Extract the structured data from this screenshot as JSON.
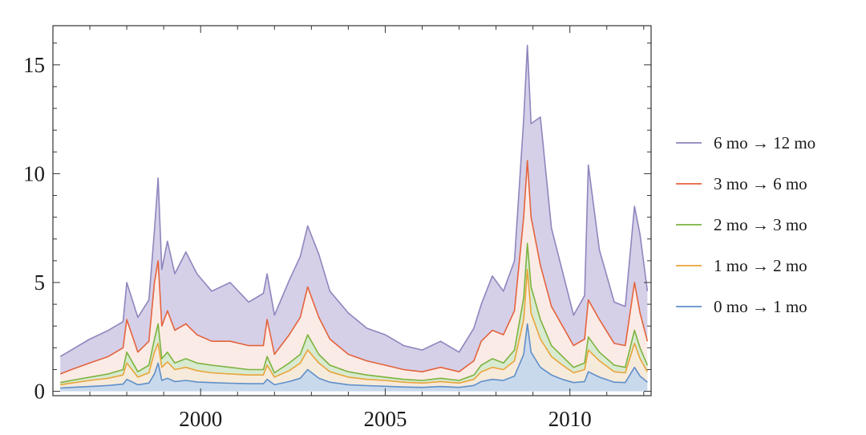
{
  "chart_data": {
    "type": "area",
    "x_ticks": [
      {
        "label": "2000",
        "value": 2000
      },
      {
        "label": "2005",
        "value": 2005
      },
      {
        "label": "2010",
        "value": 2010
      }
    ],
    "y_ticks": [
      {
        "label": "0",
        "value": 0
      },
      {
        "label": "5",
        "value": 5
      },
      {
        "label": "10",
        "value": 10
      },
      {
        "label": "15",
        "value": 15
      }
    ],
    "xlim": [
      1996.0,
      2012.2
    ],
    "ylim": [
      -0.2,
      16.8
    ],
    "x": [
      1996.2,
      1996.5,
      1997.0,
      1997.5,
      1997.9,
      1998.0,
      1998.3,
      1998.6,
      1998.75,
      1998.85,
      1998.95,
      1999.1,
      1999.3,
      1999.6,
      1999.9,
      2000.3,
      2000.8,
      2001.3,
      2001.7,
      2001.8,
      2002.0,
      2002.4,
      2002.7,
      2002.9,
      2003.2,
      2003.5,
      2004.0,
      2004.5,
      2005.0,
      2005.5,
      2006.0,
      2006.5,
      2007.0,
      2007.4,
      2007.6,
      2007.9,
      2008.2,
      2008.5,
      2008.75,
      2008.85,
      2008.95,
      2009.2,
      2009.5,
      2009.8,
      2010.1,
      2010.4,
      2010.5,
      2010.8,
      2011.2,
      2011.5,
      2011.75,
      2011.9,
      2012.1
    ],
    "series": [
      {
        "name": "6 mo → 12 mo",
        "color": "#8f85bd",
        "fill": "#d5d0e8",
        "values": [
          1.6,
          1.9,
          2.4,
          2.8,
          3.2,
          5.0,
          3.4,
          4.2,
          7.4,
          9.8,
          5.6,
          6.9,
          5.4,
          6.4,
          5.4,
          4.6,
          5.0,
          4.1,
          4.5,
          5.4,
          3.5,
          5.1,
          6.2,
          7.6,
          6.3,
          4.6,
          3.6,
          2.9,
          2.6,
          2.1,
          1.9,
          2.3,
          1.8,
          2.9,
          4.0,
          5.3,
          4.6,
          6.0,
          12.5,
          15.9,
          12.3,
          12.6,
          7.5,
          5.5,
          3.5,
          4.4,
          10.4,
          6.5,
          4.1,
          3.9,
          8.5,
          7.2,
          4.6
        ]
      },
      {
        "name": "3 mo → 6 mo",
        "color": "#e4633d",
        "fill": "#fbebe6",
        "values": [
          0.8,
          1.0,
          1.3,
          1.6,
          2.0,
          3.3,
          1.8,
          2.3,
          5.0,
          6.0,
          3.0,
          3.7,
          2.8,
          3.1,
          2.6,
          2.3,
          2.3,
          2.1,
          2.1,
          3.3,
          1.7,
          2.6,
          3.4,
          4.8,
          3.4,
          2.4,
          1.7,
          1.4,
          1.2,
          1.0,
          0.9,
          1.1,
          0.9,
          1.4,
          2.3,
          2.8,
          2.6,
          3.7,
          8.0,
          10.6,
          8.0,
          5.8,
          3.9,
          3.0,
          2.1,
          2.4,
          4.2,
          3.3,
          2.2,
          2.1,
          5.0,
          3.6,
          2.3
        ]
      },
      {
        "name": "2 mo → 3 mo",
        "color": "#7cb33f",
        "fill": "#d8ead0",
        "values": [
          0.4,
          0.5,
          0.65,
          0.8,
          1.0,
          1.8,
          0.9,
          1.2,
          2.4,
          3.1,
          1.5,
          1.8,
          1.3,
          1.5,
          1.3,
          1.2,
          1.1,
          1.0,
          1.0,
          1.6,
          0.85,
          1.3,
          1.7,
          2.6,
          1.7,
          1.2,
          0.9,
          0.75,
          0.65,
          0.55,
          0.5,
          0.6,
          0.5,
          0.75,
          1.2,
          1.5,
          1.3,
          1.9,
          4.3,
          6.8,
          4.8,
          3.3,
          2.1,
          1.6,
          1.1,
          1.3,
          2.5,
          1.8,
          1.2,
          1.1,
          2.8,
          2.0,
          1.2
        ]
      },
      {
        "name": "1 mo → 2 mo",
        "color": "#e9a43a",
        "fill": "#f6eadb",
        "values": [
          0.3,
          0.38,
          0.5,
          0.6,
          0.75,
          1.3,
          0.65,
          0.85,
          1.8,
          2.2,
          1.1,
          1.35,
          1.0,
          1.1,
          0.95,
          0.85,
          0.8,
          0.75,
          0.75,
          1.2,
          0.65,
          0.95,
          1.3,
          1.9,
          1.3,
          0.9,
          0.65,
          0.55,
          0.5,
          0.42,
          0.38,
          0.45,
          0.38,
          0.55,
          0.9,
          1.1,
          1.0,
          1.4,
          3.3,
          5.6,
          3.6,
          2.4,
          1.6,
          1.2,
          0.85,
          1.0,
          1.9,
          1.4,
          0.9,
          0.85,
          2.2,
          1.5,
          0.9
        ]
      },
      {
        "name": "0 mo → 1 mo",
        "color": "#5f8fc9",
        "fill": "#c9d9ec",
        "values": [
          0.15,
          0.18,
          0.22,
          0.27,
          0.33,
          0.55,
          0.3,
          0.38,
          0.8,
          1.3,
          0.5,
          0.6,
          0.45,
          0.5,
          0.43,
          0.4,
          0.37,
          0.35,
          0.35,
          0.55,
          0.3,
          0.45,
          0.6,
          1.0,
          0.6,
          0.42,
          0.3,
          0.26,
          0.23,
          0.2,
          0.18,
          0.22,
          0.18,
          0.27,
          0.45,
          0.55,
          0.5,
          0.7,
          1.7,
          3.1,
          1.8,
          1.1,
          0.75,
          0.55,
          0.4,
          0.45,
          0.9,
          0.65,
          0.42,
          0.4,
          1.1,
          0.7,
          0.42
        ]
      }
    ],
    "legend_position": "right",
    "grid": false
  }
}
